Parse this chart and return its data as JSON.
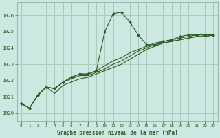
{
  "title": "Graphe pression niveau de la mer (hPa)",
  "bg_color": "#cce8e0",
  "grid_color": "#aaccbb",
  "line_color": "#2d5a27",
  "marker_color": "#2d5a27",
  "xlim": [
    -0.5,
    23.5
  ],
  "ylim": [
    1019.5,
    1026.8
  ],
  "yticks": [
    1020,
    1021,
    1022,
    1023,
    1024,
    1025,
    1026
  ],
  "xticks": [
    0,
    1,
    2,
    3,
    4,
    5,
    6,
    7,
    8,
    9,
    10,
    11,
    12,
    13,
    14,
    15,
    16,
    17,
    18,
    19,
    20,
    21,
    22,
    23
  ],
  "xtick_labels": [
    "0",
    "1",
    "2",
    "3",
    "4",
    "5",
    "6",
    "7",
    "8",
    "9",
    "10",
    "11",
    "12",
    "13",
    "14",
    "15",
    "16",
    "17",
    "18",
    "19",
    "20",
    "21",
    "22",
    "23"
  ],
  "series1": [
    1020.6,
    1020.3,
    1021.1,
    1021.6,
    1021.5,
    1021.9,
    1022.2,
    1022.4,
    1022.4,
    1022.6,
    1025.0,
    1026.1,
    1026.2,
    1025.6,
    1024.8,
    1024.2,
    1024.2,
    1024.4,
    1024.5,
    1024.7,
    1024.8,
    1024.8,
    1024.8,
    1024.8
  ],
  "series2": [
    1020.6,
    1020.3,
    1021.1,
    1021.6,
    1021.5,
    1021.9,
    1022.2,
    1022.4,
    1022.4,
    1022.6,
    1022.9,
    1023.2,
    1023.4,
    1023.7,
    1023.9,
    1024.1,
    1024.3,
    1024.4,
    1024.5,
    1024.6,
    1024.7,
    1024.8,
    1024.8,
    1024.8
  ],
  "series3": [
    1020.6,
    1020.3,
    1021.1,
    1021.6,
    1021.5,
    1021.9,
    1022.1,
    1022.3,
    1022.3,
    1022.5,
    1022.7,
    1023.0,
    1023.2,
    1023.5,
    1023.8,
    1024.0,
    1024.2,
    1024.3,
    1024.4,
    1024.5,
    1024.6,
    1024.7,
    1024.7,
    1024.8
  ],
  "series4": [
    1020.6,
    1020.3,
    1021.1,
    1021.6,
    1021.2,
    1021.7,
    1021.9,
    1022.1,
    1022.2,
    1022.4,
    1022.6,
    1022.8,
    1023.0,
    1023.3,
    1023.6,
    1023.9,
    1024.1,
    1024.3,
    1024.4,
    1024.5,
    1024.6,
    1024.7,
    1024.7,
    1024.8
  ]
}
